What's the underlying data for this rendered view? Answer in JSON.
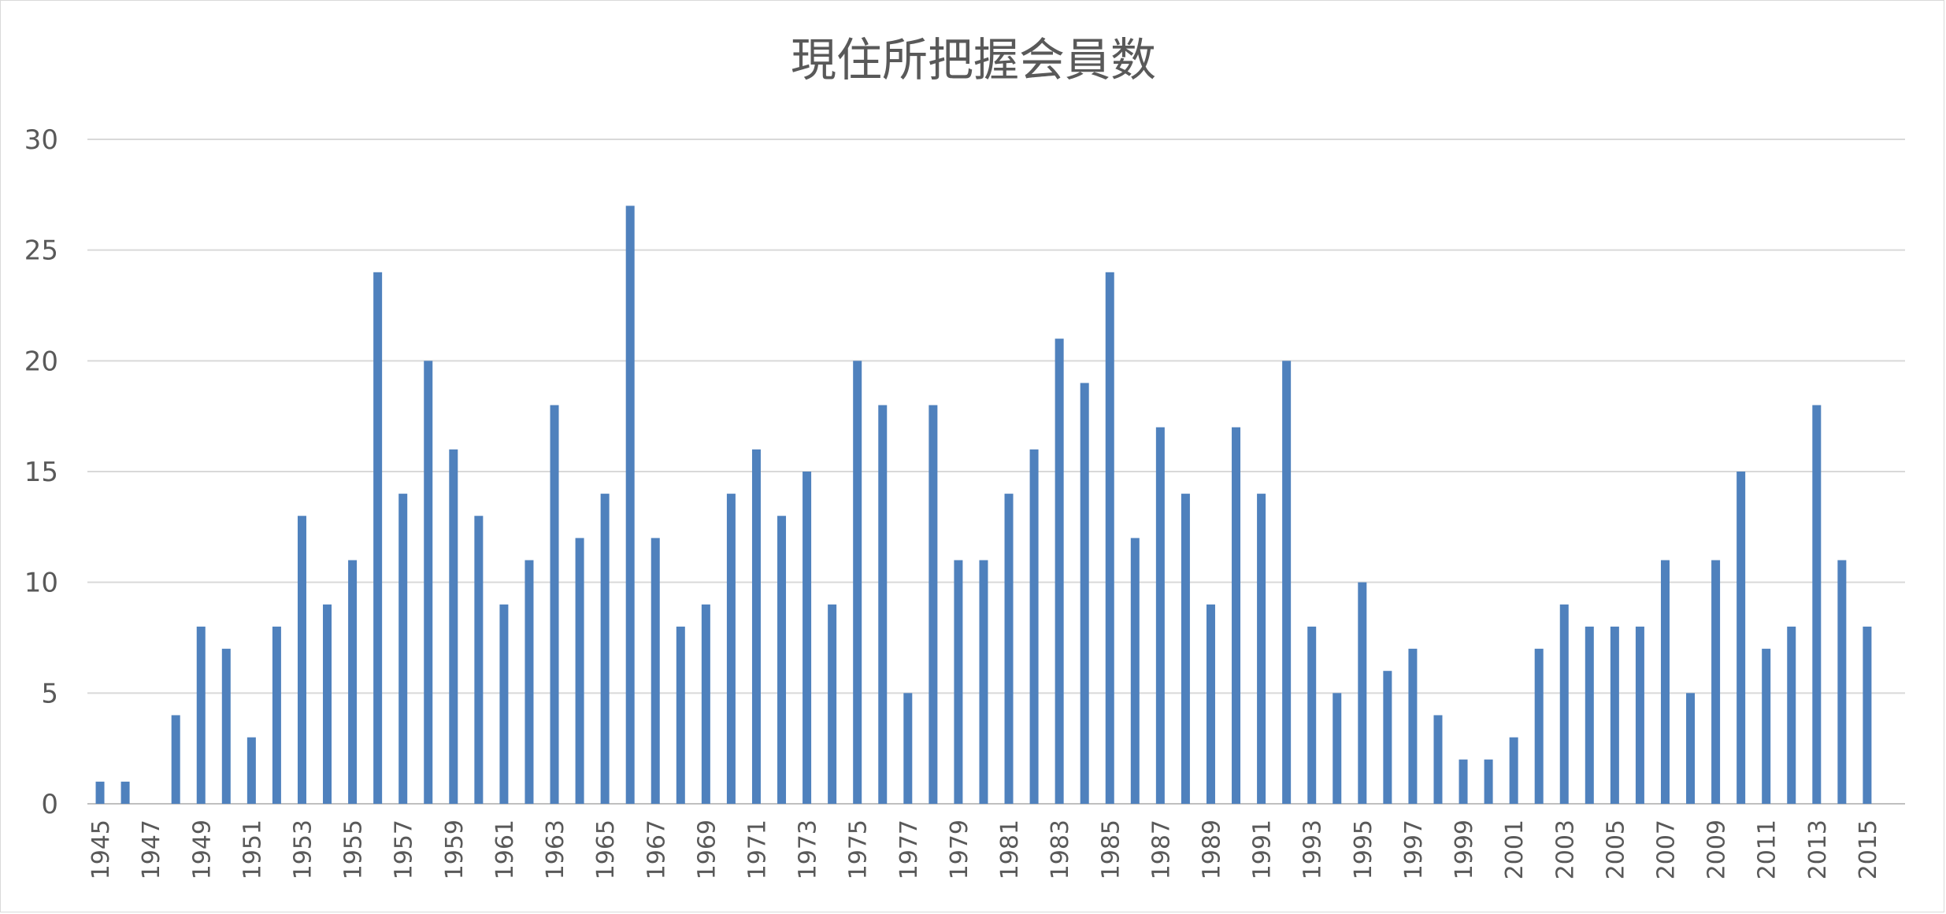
{
  "chart_data": {
    "type": "bar",
    "title": "現住所把握会員数",
    "xlabel": "",
    "ylabel": "",
    "ylim": [
      0,
      30
    ],
    "yticks": [
      0,
      5,
      10,
      15,
      20,
      25,
      30
    ],
    "grid": true,
    "legend": "none",
    "bar_color": "#4f81bd",
    "categories": [
      "1945",
      "1946",
      "1947",
      "1948",
      "1949",
      "1950",
      "1951",
      "1952",
      "1953",
      "1954",
      "1955",
      "1956",
      "1957",
      "1958",
      "1959",
      "1960",
      "1961",
      "1962",
      "1963",
      "1964",
      "1965",
      "1966",
      "1967",
      "1968",
      "1969",
      "1970",
      "1971",
      "1972",
      "1973",
      "1974",
      "1975",
      "1976",
      "1977",
      "1978",
      "1979",
      "1980",
      "1981",
      "1982",
      "1983",
      "1984",
      "1985",
      "1986",
      "1987",
      "1988",
      "1989",
      "1990",
      "1991",
      "1992",
      "1993",
      "1994",
      "1995",
      "1996",
      "1997",
      "1998",
      "1999",
      "2000",
      "2001",
      "2002",
      "2003",
      "2004",
      "2005",
      "2006",
      "2007",
      "2008",
      "2009",
      "2010",
      "2011",
      "2012",
      "2013",
      "2014",
      "2015",
      "2016"
    ],
    "tick_labels": [
      "1945",
      "1947",
      "1949",
      "1951",
      "1953",
      "1955",
      "1957",
      "1959",
      "1961",
      "1963",
      "1965",
      "1967",
      "1969",
      "1971",
      "1973",
      "1975",
      "1977",
      "1979",
      "1981",
      "1983",
      "1985",
      "1987",
      "1989",
      "1991",
      "1993",
      "1995",
      "1997",
      "1999",
      "2001",
      "2003",
      "2005",
      "2007",
      "2009",
      "2011",
      "2013",
      "2015"
    ],
    "values": [
      1,
      1,
      0,
      4,
      8,
      7,
      3,
      8,
      13,
      9,
      11,
      24,
      14,
      20,
      16,
      13,
      9,
      11,
      18,
      12,
      14,
      27,
      12,
      8,
      9,
      14,
      16,
      13,
      15,
      9,
      20,
      18,
      5,
      18,
      11,
      11,
      14,
      16,
      21,
      19,
      24,
      12,
      17,
      14,
      9,
      17,
      14,
      20,
      8,
      5,
      10,
      6,
      7,
      4,
      2,
      2,
      3,
      7,
      9,
      8,
      8,
      8,
      11,
      5,
      11,
      15,
      7,
      8,
      18,
      11,
      8,
      0
    ]
  }
}
